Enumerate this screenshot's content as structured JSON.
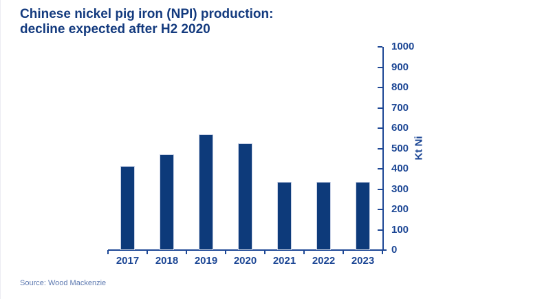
{
  "header": {
    "title_line1": "Chinese nickel pig iron (NPI) production:",
    "title_line2": "decline expected after H2 2020"
  },
  "footer": {
    "source": "Source: Wood Mackenzie"
  },
  "colors": {
    "bar_fill": "#0d3a7a",
    "axis_and_labels": "#1d4795",
    "title_text": "#133a7e",
    "source_text": "#5d79b0",
    "background": "#ffffff"
  },
  "chart_data": {
    "type": "bar",
    "title": "Chinese nickel pig iron (NPI) production: decline expected after H2 2020",
    "categories": [
      "2017",
      "2018",
      "2019",
      "2020",
      "2021",
      "2022",
      "2023"
    ],
    "values": [
      415,
      470,
      570,
      525,
      335,
      335,
      335
    ],
    "xlabel": "",
    "ylabel": "Kt Ni",
    "ylim": [
      0,
      1000
    ],
    "ytick_step": 100,
    "y_tick_labels": [
      "0",
      "100",
      "200",
      "300",
      "400",
      "500",
      "600",
      "700",
      "800",
      "900",
      "1000"
    ],
    "grid": false,
    "legend": false,
    "y_axis_side": "right",
    "source": "Source: Wood Mackenzie"
  }
}
